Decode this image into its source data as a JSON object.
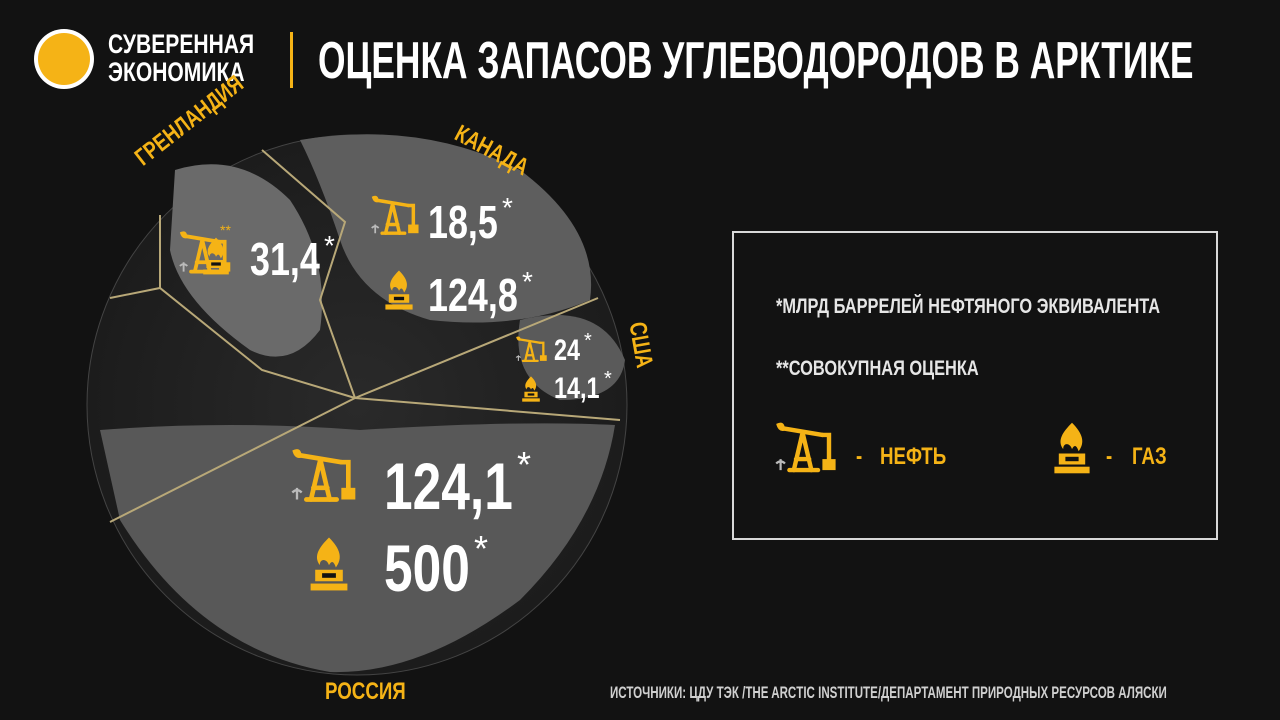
{
  "brand": {
    "line1": "СУВЕРЕННАЯ",
    "line2": "ЭКОНОМИКА"
  },
  "title": "ОЦЕНКА ЗАПАСОВ УГЛЕВОДОРОДОВ В АРКТИКЕ",
  "colors": {
    "accent": "#f5b316",
    "background": "#121212",
    "map": "#5a5a5a"
  },
  "regions": {
    "greenland": {
      "label": "ГРЕНЛАНДИЯ",
      "combined": "31,4",
      "mark": "*",
      "combined_mark": "**"
    },
    "canada": {
      "label": "КАНАДА",
      "oil": "18,5",
      "gas": "124,8",
      "mark": "*"
    },
    "usa": {
      "label": "США",
      "oil": "24",
      "gas": "14,1",
      "mark": "*"
    },
    "russia": {
      "label": "РОССИЯ",
      "oil": "124,1",
      "gas": "500",
      "mark": "*"
    }
  },
  "legend": {
    "unit_note": "*МЛРД БАРРЕЛЕЙ НЕФТЯНОГО ЭКВИВАЛЕНТА",
    "combined_note": "**СОВОКУПНАЯ ОЦЕНКА",
    "oil": {
      "icon": "oil-pumpjack-icon",
      "dash": "-",
      "label": "НЕФТЬ"
    },
    "gas": {
      "icon": "gas-flame-icon",
      "dash": "-",
      "label": "ГАЗ"
    }
  },
  "sources": "ИСТОЧНИКИ:  ЦДУ ТЭК /THE ARCTIC INSTITUTE/ДЕПАРТАМЕНТ ПРИРОДНЫХ РЕСУРСОВ АЛЯСКИ"
}
